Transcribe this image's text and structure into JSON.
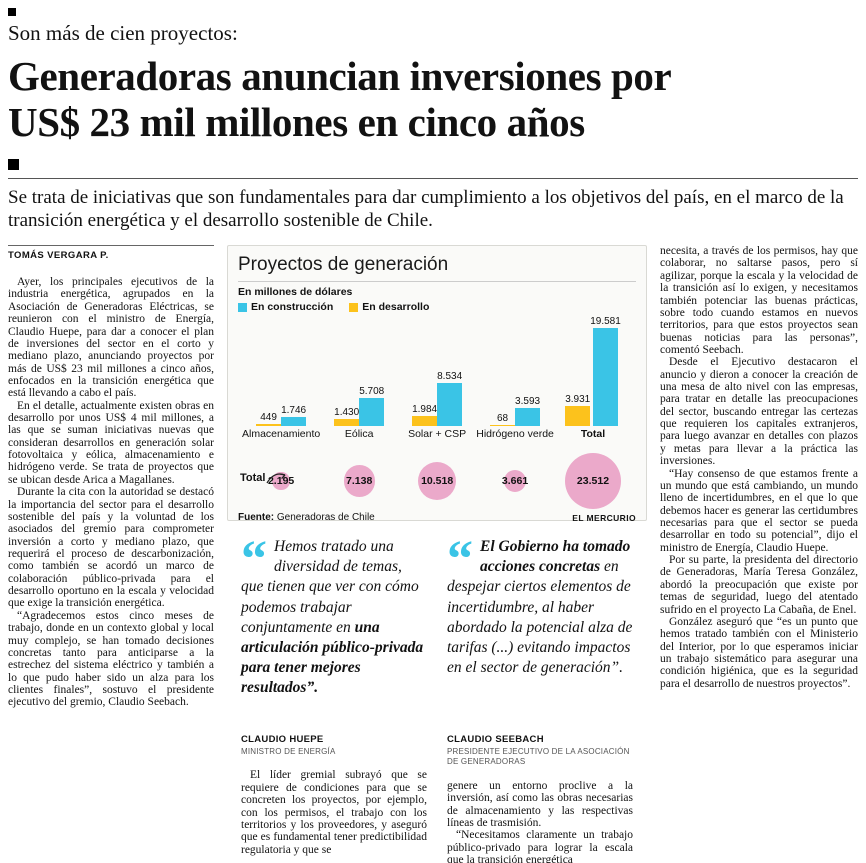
{
  "header": {
    "kicker": "Son más de cien proyectos:",
    "headline_lines": [
      "Generadoras anuncian inversiones por",
      "US$ 23 mil millones en cinco años"
    ],
    "subhead": "Se trata de iniciativas que son fundamentales para dar cumplimiento a los objetivos del país, en el marco de la transición energética y el desarrollo sostenible de Chile.",
    "byline": "TOMÁS VERGARA P."
  },
  "left_column": {
    "paragraphs": [
      "Ayer, los principales ejecutivos de la industria energética, agrupados en la Asociación de Generadoras Eléctricas, se reunieron con el ministro de Energía, Claudio Huepe, para dar a conocer el plan de inversiones del sector en el corto y mediano plazo, anunciando proyectos por más de US$ 23 mil millones a cinco años, enfocados en la transición energética que está llevando a cabo el país.",
      "En el detalle, actualmente existen obras en desarrollo por unos US$ 4 mil millones, a las que se suman iniciativas nuevas que consideran desarrollos en generación solar fotovoltaica y eólica, almacenamiento e hidrógeno verde. Se trata de proyectos que se ubican desde Arica a Magallanes.",
      "Durante la cita con la autoridad se destacó la importancia del sector para el desarrollo sostenible del país y la voluntad de los asociados del gremio para comprometer inversión a corto y mediano plazo, que requerirá el proceso de descarbonización, como también se acordó un marco de colaboración público-privada para el desarrollo oportuno en la escala y velocidad que exige la transición energética.",
      "“Agradecemos estos cinco meses de trabajo, donde en un contexto global y local muy complejo, se han tomado decisiones concretas tanto para anticiparse a la estrechez del sistema eléctrico y también a lo que pudo haber sido un alza para los clientes finales”, sostuvo el presidente ejecutivo del gremio, Claudio Seebach."
    ]
  },
  "right_column": {
    "paragraphs": [
      "necesita, a través de los permisos, hay que colaborar, no saltarse pasos, pero sí agilizar, porque la escala y la velocidad de la transición así lo exigen, y necesitamos también potenciar las buenas prácticas, sobre todo cuando estamos en nuevos territorios, para que estos proyectos sean buenas noticias para las personas”, comentó Seebach.",
      "Desde el Ejecutivo destacaron el anuncio y dieron a conocer la creación de una mesa de alto nivel con las empresas, para tratar en detalle las preocupaciones del sector, buscando entregar las certezas que requieren los capitales extranjeros, para luego avanzar en detalles con plazos y metas para llevar a la práctica las inversiones.",
      "“Hay consenso de que estamos frente a un mundo que está cambiando, un mundo lleno de incertidumbres, en el que lo que debemos hacer es generar las certidumbres necesarias para que el sector se pueda desarrollar en todo su potencial”, dijo el ministro de Energía, Claudio Huepe.",
      "Por su parte, la presidenta del directorio de Generadoras, María Teresa González, abordó la preocupación que existe por temas de seguridad, luego del atentado sufrido en el proyecto La Cabaña, de Enel.",
      "González aseguró que “es un punto que hemos tratado también con el Ministerio del Interior, por lo que esperamos iniciar un trabajo sistemático para asegurar una condición higiénica, que es la seguridad para el desarrollo de nuestros proyectos”."
    ]
  },
  "chart_data": {
    "type": "bar",
    "title": "Proyectos de generación",
    "subtitle": "En millones de dólares",
    "categories": [
      "Almacenamiento",
      "Eólica",
      "Solar + CSP",
      "Hidrógeno verde",
      "Total"
    ],
    "series": [
      {
        "name": "En construcción",
        "color": "#3ac4e6",
        "values": [
          1746,
          5708,
          8534,
          3593,
          19581
        ]
      },
      {
        "name": "En desarrollo",
        "color": "#fcc21c",
        "values": [
          449,
          1430,
          1984,
          68,
          3931
        ]
      }
    ],
    "totals": {
      "label": "Total",
      "color": "#eba9ca",
      "values": [
        2195,
        7138,
        10518,
        3661,
        23512
      ]
    },
    "ylim": [
      0,
      19581
    ],
    "legend_position": "top-left",
    "grid": false,
    "source_label": "Fuente:",
    "source": "Generadoras de Chile",
    "credit": "EL MERCURIO"
  },
  "quotes": [
    {
      "pre": "Hemos tratado una diversidad de temas, que tienen que ver con cómo podemos trabajar conjuntamente en ",
      "bold": "una articulación público-privada para tener mejores resultados”.",
      "post": "",
      "name": "CLAUDIO HUEPE",
      "title": "MINISTRO DE ENERGÍA"
    },
    {
      "pre": "",
      "bold": "El Gobierno ha tomado acciones concretas ",
      "post": "en despejar ciertos elementos de incertidumbre, al haber abordado la potencial alza de tarifas (...) evitando impactos en el sector de generación”.",
      "name": "CLAUDIO SEEBACH",
      "title": "PRESIDENTE EJECUTIVO DE LA ASOCIACIÓN DE GENERADORAS"
    }
  ],
  "mid_columns": {
    "col1": [
      "El líder gremial subrayó que se requiere de condiciones para que se concreten los proyectos, por ejemplo, con los permisos, el trabajo con los territorios y los proveedores, y aseguró que es fundamental tener predictibilidad regulatoria y que se"
    ],
    "col2": [
      "genere un entorno proclive a la inversión, así como las obras necesarias de almacenamiento y las respectivas líneas de trasmisión.",
      "“Necesitamos claramente un trabajo público-privado para lograr la escala que la transición energética"
    ]
  }
}
